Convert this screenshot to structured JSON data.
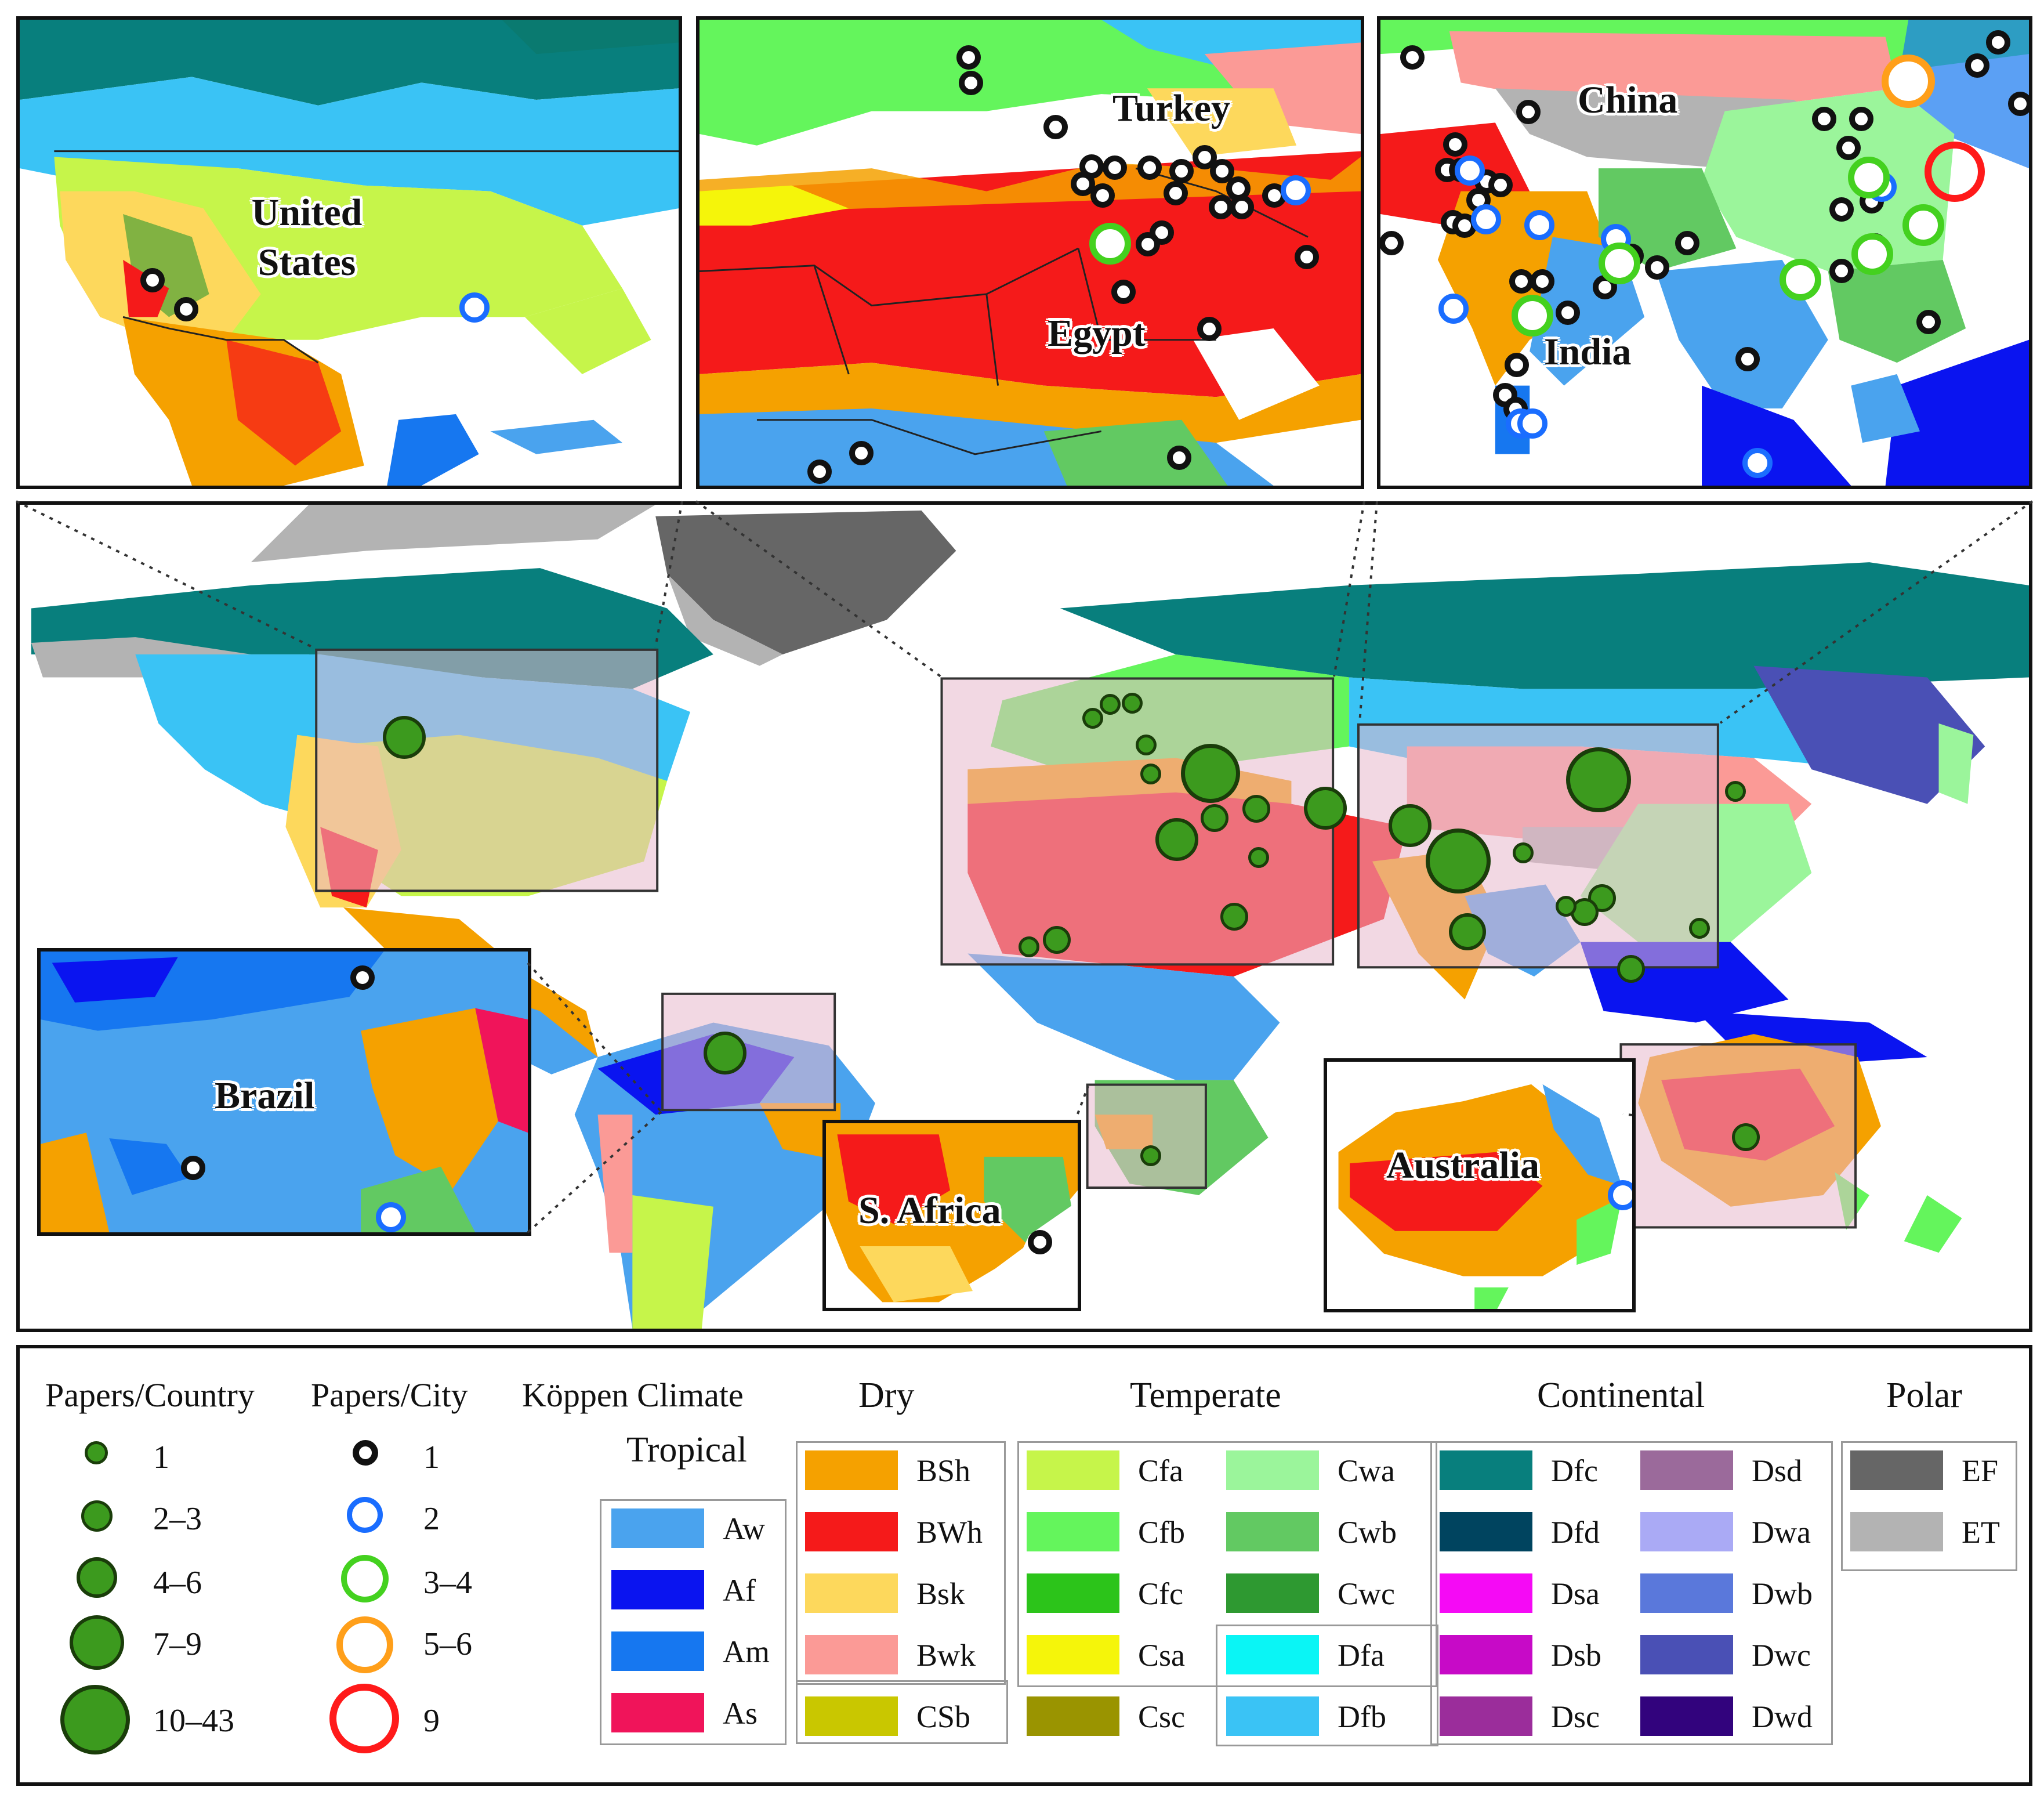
{
  "map_labels": {
    "united_states": "United\nStates",
    "turkey": "Turkey",
    "egypt": "Egypt",
    "china": "China",
    "india": "India",
    "brazil": "Brazil",
    "south_africa": "S. Africa",
    "australia": "Australia"
  },
  "legend": {
    "papers_country_title": "Papers/Country",
    "papers_city_title": "Papers/City",
    "koppen_title": "Köppen Climate",
    "country_sizes": [
      "1",
      "2–3",
      "4–6",
      "7–9",
      "10–43"
    ],
    "city_sizes": [
      {
        "label": "1",
        "color": "#111111"
      },
      {
        "label": "2",
        "color": "#1a6dff"
      },
      {
        "label": "3–4",
        "color": "#44d11f"
      },
      {
        "label": "5–6",
        "color": "#ff9f1a"
      },
      {
        "label": "9",
        "color": "#ff1a1a"
      }
    ],
    "groups": {
      "tropical": {
        "title": "Tropical",
        "classes": [
          {
            "code": "Aw",
            "color": "#4aa3ee"
          },
          {
            "code": "Af",
            "color": "#0a14f0"
          },
          {
            "code": "Am",
            "color": "#1677f0"
          },
          {
            "code": "As",
            "color": "#f0145a"
          }
        ]
      },
      "dry": {
        "title": "Dry",
        "classes": [
          {
            "code": "BSh",
            "color": "#f5a100"
          },
          {
            "code": "BWh",
            "color": "#f51a1a"
          },
          {
            "code": "Bsk",
            "color": "#fdd85c"
          },
          {
            "code": "Bwk",
            "color": "#fb9a96"
          },
          {
            "code": "CSb",
            "color": "#c9c700"
          }
        ]
      },
      "temperate": {
        "title": "Temperate",
        "classes": [
          {
            "code": "Cfa",
            "color": "#c6f54a"
          },
          {
            "code": "Cfb",
            "color": "#64f55c"
          },
          {
            "code": "Cfc",
            "color": "#2cc41a"
          },
          {
            "code": "Csa",
            "color": "#f5f50a"
          },
          {
            "code": "Csc",
            "color": "#9a9400"
          },
          {
            "code": "Cwa",
            "color": "#9bf59b"
          },
          {
            "code": "Cwb",
            "color": "#62c962"
          },
          {
            "code": "Cwc",
            "color": "#2e9931"
          },
          {
            "code": "Dfa",
            "color": "#0af5f5"
          },
          {
            "code": "Dfb",
            "color": "#3ac3f5"
          }
        ]
      },
      "continental": {
        "title": "Continental",
        "classes": [
          {
            "code": "Dfc",
            "color": "#087f7d"
          },
          {
            "code": "Dfd",
            "color": "#00445f"
          },
          {
            "code": "Dsa",
            "color": "#f50af5"
          },
          {
            "code": "Dsb",
            "color": "#c70ac7"
          },
          {
            "code": "Dsc",
            "color": "#9b2d9b"
          },
          {
            "code": "Dsd",
            "color": "#9b6a9b"
          },
          {
            "code": "Dwa",
            "color": "#aaaaf5"
          },
          {
            "code": "Dwb",
            "color": "#5a78db"
          },
          {
            "code": "Dwc",
            "color": "#4a50b5"
          },
          {
            "code": "Dwd",
            "color": "#32037d"
          }
        ]
      },
      "polar": {
        "title": "Polar",
        "classes": [
          {
            "code": "EF",
            "color": "#666666"
          },
          {
            "code": "ET",
            "color": "#b3b3b3"
          }
        ]
      }
    }
  }
}
